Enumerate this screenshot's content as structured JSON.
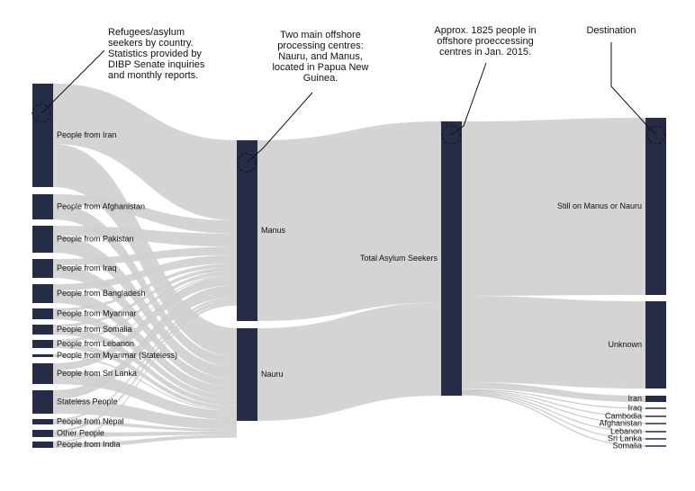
{
  "colors": {
    "node": "#272c46",
    "link": "#cfcfcf",
    "background": "#ffffff",
    "annotation_line": "#111111"
  },
  "annotations": [
    {
      "id": "countries",
      "lines": [
        "Refugees/asylum",
        "seekers by country.",
        "Statistics provided by",
        "DIBP Senate inquiries",
        "and monthly reports."
      ]
    },
    {
      "id": "centres",
      "lines": [
        "Two main offshore",
        "processing centres:",
        "Nauru, and Manus,",
        "located in Papua New",
        "Guinea."
      ]
    },
    {
      "id": "total",
      "lines": [
        "Approx. 1825 people in",
        "offshore proeccessing",
        "centres in Jan. 2015."
      ]
    },
    {
      "id": "destination",
      "lines": [
        "Destination"
      ]
    }
  ],
  "nodes": {
    "sources": [
      {
        "id": "iran",
        "label": "People from Iran"
      },
      {
        "id": "afghanistan",
        "label": "People from Afghanistan"
      },
      {
        "id": "pakistan",
        "label": "People from Pakistan"
      },
      {
        "id": "iraq",
        "label": "People from Iraq"
      },
      {
        "id": "bangladesh",
        "label": "People from Bangladesh"
      },
      {
        "id": "myanmar",
        "label": "People from Myanmar"
      },
      {
        "id": "somalia",
        "label": "People from Somalia"
      },
      {
        "id": "lebanon",
        "label": "People from Lebanon"
      },
      {
        "id": "myanmar_stateless",
        "label": "People from Myanmar (Stateless)"
      },
      {
        "id": "srilanka",
        "label": "People from Sri Lanka"
      },
      {
        "id": "stateless",
        "label": "Stateless People"
      },
      {
        "id": "nepal",
        "label": "People from Nepal"
      },
      {
        "id": "other",
        "label": "Other People"
      },
      {
        "id": "india",
        "label": "People from India"
      }
    ],
    "centres": [
      {
        "id": "manus",
        "label": "Manus"
      },
      {
        "id": "nauru",
        "label": "Nauru"
      }
    ],
    "total": {
      "id": "total",
      "label": "Total Asylum Seekers"
    },
    "destinations": [
      {
        "id": "still",
        "label": "Still on Manus or Nauru"
      },
      {
        "id": "unknown",
        "label": "Unknown"
      },
      {
        "id": "d_iran",
        "label": "Iran"
      },
      {
        "id": "d_iraq",
        "label": "Iraq"
      },
      {
        "id": "d_cambodia",
        "label": "Cambodia"
      },
      {
        "id": "d_afghanistan",
        "label": "Afghanistan"
      },
      {
        "id": "d_lebanon",
        "label": "Lebanon"
      },
      {
        "id": "d_srilanka",
        "label": "Sri Lanka"
      },
      {
        "id": "d_somalia",
        "label": "Somalia"
      }
    ]
  }
}
